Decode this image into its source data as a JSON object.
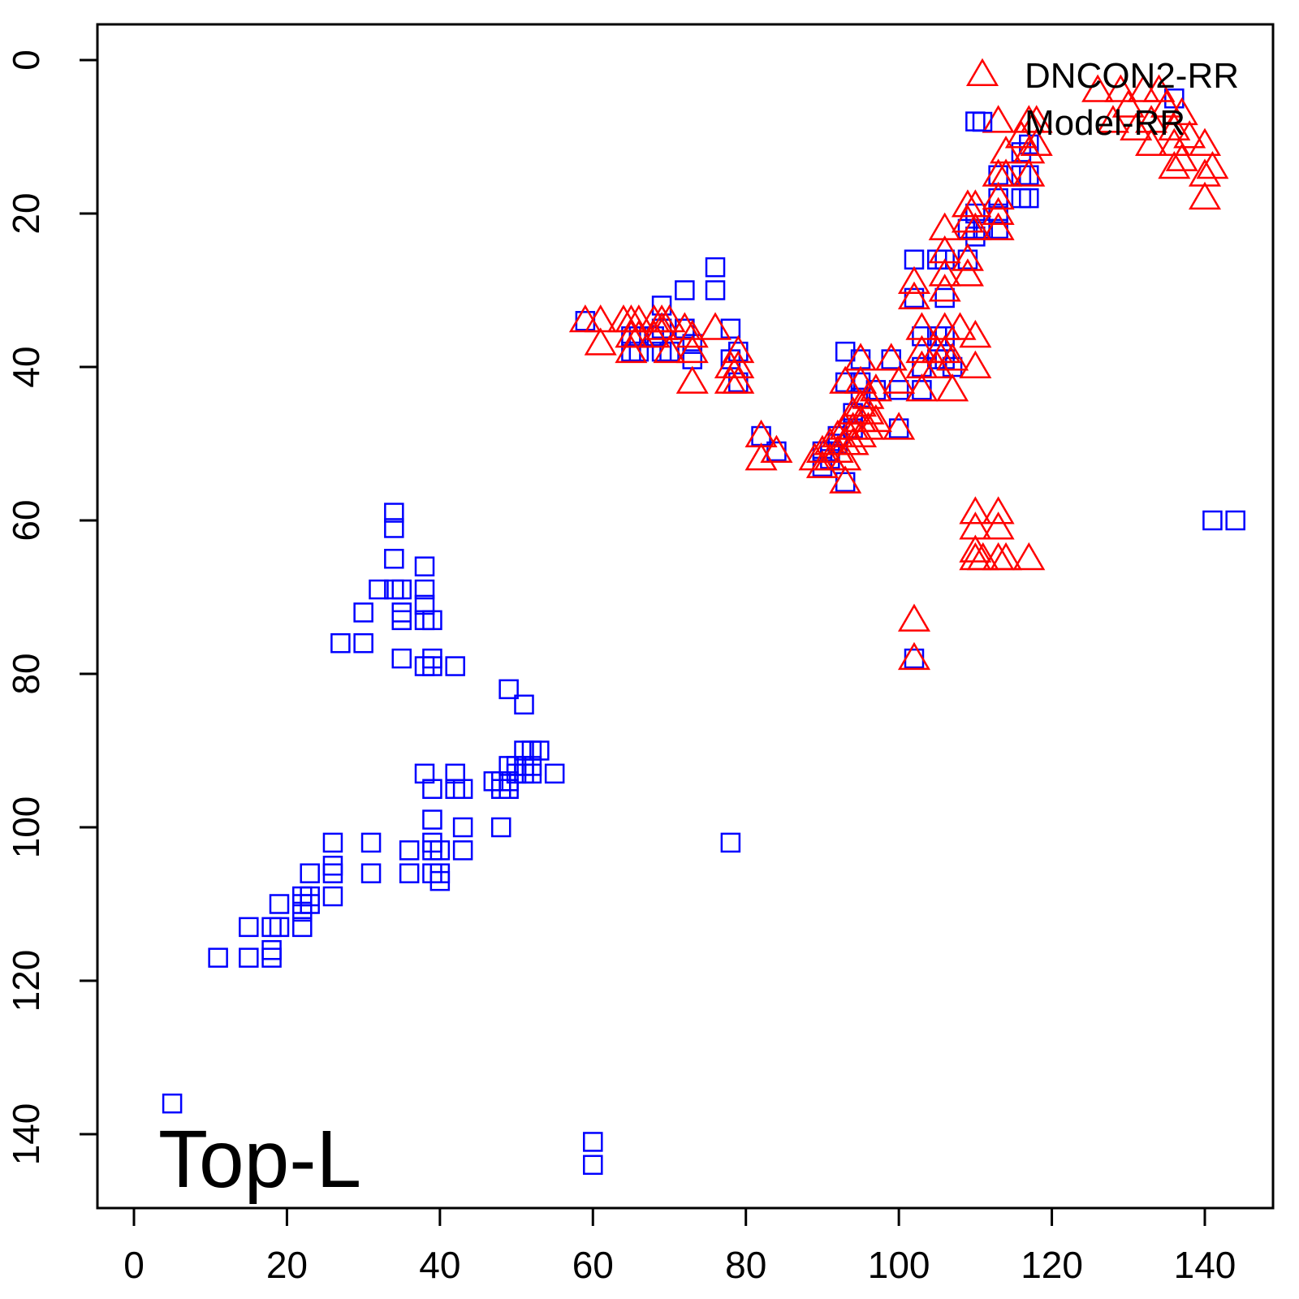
{
  "chart_data": {
    "type": "scatter",
    "panel_label": "Top-L",
    "title": "",
    "xlabel": "",
    "ylabel": "",
    "xlim": [
      -4.5,
      149.5
    ],
    "ylim": [
      -4.5,
      149.5
    ],
    "y_inverted": true,
    "x_ticks": [
      0,
      20,
      40,
      60,
      80,
      100,
      120,
      140
    ],
    "y_ticks": [
      0,
      20,
      40,
      60,
      80,
      100,
      120,
      140
    ],
    "grid": false,
    "legend_position": "top-right",
    "series": [
      {
        "name": "DNCON2-RR",
        "marker": "triangle",
        "color": "#ff0000",
        "points": [
          [
            59,
            34
          ],
          [
            61,
            34
          ],
          [
            61,
            37
          ],
          [
            64,
            34
          ],
          [
            65,
            34
          ],
          [
            65,
            36
          ],
          [
            65,
            38
          ],
          [
            66,
            34
          ],
          [
            66,
            36
          ],
          [
            68,
            34
          ],
          [
            68,
            36
          ],
          [
            69,
            34
          ],
          [
            69,
            35
          ],
          [
            70,
            34
          ],
          [
            70,
            38
          ],
          [
            72,
            35
          ],
          [
            73,
            36
          ],
          [
            73,
            38
          ],
          [
            73,
            42
          ],
          [
            76,
            35
          ],
          [
            78,
            40
          ],
          [
            78,
            42
          ],
          [
            79,
            38
          ],
          [
            79,
            40
          ],
          [
            79,
            42
          ],
          [
            82,
            49
          ],
          [
            82,
            52
          ],
          [
            84,
            51
          ],
          [
            89,
            52
          ],
          [
            90,
            51
          ],
          [
            90,
            53
          ],
          [
            91,
            50
          ],
          [
            91,
            52
          ],
          [
            92,
            49
          ],
          [
            92,
            51
          ],
          [
            93,
            48
          ],
          [
            93,
            50
          ],
          [
            93,
            52
          ],
          [
            93,
            55
          ],
          [
            94,
            46
          ],
          [
            94,
            48
          ],
          [
            94,
            50
          ],
          [
            95,
            45
          ],
          [
            95,
            47
          ],
          [
            95,
            49
          ],
          [
            95,
            39
          ],
          [
            95,
            42
          ],
          [
            96,
            44
          ],
          [
            96,
            46
          ],
          [
            96,
            48
          ],
          [
            97,
            47
          ],
          [
            97,
            43
          ],
          [
            93,
            42
          ],
          [
            99,
            39
          ],
          [
            100,
            42
          ],
          [
            100,
            48
          ],
          [
            102,
            29
          ],
          [
            102,
            31
          ],
          [
            102,
            73
          ],
          [
            102,
            78
          ],
          [
            103,
            35
          ],
          [
            103,
            38
          ],
          [
            103,
            40
          ],
          [
            103,
            43
          ],
          [
            105,
            38
          ],
          [
            105,
            40
          ],
          [
            106,
            22
          ],
          [
            106,
            25
          ],
          [
            106,
            28
          ],
          [
            106,
            30
          ],
          [
            106,
            35
          ],
          [
            106,
            38
          ],
          [
            107,
            39
          ],
          [
            107,
            43
          ],
          [
            108,
            35
          ],
          [
            109,
            19
          ],
          [
            109,
            21
          ],
          [
            109,
            26
          ],
          [
            109,
            28
          ],
          [
            110,
            19
          ],
          [
            110,
            22
          ],
          [
            110,
            36
          ],
          [
            110,
            40
          ],
          [
            110,
            59
          ],
          [
            110,
            61
          ],
          [
            110,
            64
          ],
          [
            110,
            65
          ],
          [
            111,
            65
          ],
          [
            113,
            8
          ],
          [
            113,
            15
          ],
          [
            113,
            18
          ],
          [
            113,
            20
          ],
          [
            113,
            22
          ],
          [
            113,
            59
          ],
          [
            113,
            61
          ],
          [
            113,
            65
          ],
          [
            114,
            12
          ],
          [
            114,
            15
          ],
          [
            114,
            65
          ],
          [
            116,
            10
          ],
          [
            117,
            8
          ],
          [
            117,
            12
          ],
          [
            117,
            15
          ],
          [
            117,
            65
          ],
          [
            118,
            8
          ],
          [
            118,
            11
          ],
          [
            126,
            4
          ],
          [
            128,
            8
          ],
          [
            129,
            4
          ],
          [
            130,
            6
          ],
          [
            132,
            4
          ],
          [
            133,
            8
          ],
          [
            133,
            11
          ],
          [
            134,
            4
          ],
          [
            135,
            6
          ],
          [
            136,
            9
          ],
          [
            136,
            11
          ],
          [
            137,
            7
          ],
          [
            137,
            13
          ],
          [
            138,
            10
          ],
          [
            140,
            11
          ],
          [
            140,
            15
          ],
          [
            140,
            18
          ],
          [
            141,
            14
          ],
          [
            136,
            14
          ],
          [
            131,
            9
          ]
        ]
      },
      {
        "name": "Model-RR",
        "marker": "square",
        "color": "#0000ff",
        "points": [
          [
            5,
            136
          ],
          [
            11,
            117
          ],
          [
            15,
            113
          ],
          [
            15,
            117
          ],
          [
            18,
            113
          ],
          [
            18,
            116
          ],
          [
            18,
            117
          ],
          [
            19,
            110
          ],
          [
            19,
            113
          ],
          [
            22,
            109
          ],
          [
            22,
            110
          ],
          [
            22,
            111
          ],
          [
            22,
            113
          ],
          [
            23,
            106
          ],
          [
            23,
            109
          ],
          [
            23,
            110
          ],
          [
            26,
            102
          ],
          [
            26,
            105
          ],
          [
            26,
            106
          ],
          [
            26,
            109
          ],
          [
            27,
            76
          ],
          [
            30,
            72
          ],
          [
            30,
            76
          ],
          [
            31,
            102
          ],
          [
            31,
            106
          ],
          [
            32,
            69
          ],
          [
            34,
            59
          ],
          [
            34,
            61
          ],
          [
            34,
            65
          ],
          [
            34,
            69
          ],
          [
            35,
            69
          ],
          [
            35,
            72
          ],
          [
            35,
            73
          ],
          [
            35,
            78
          ],
          [
            36,
            103
          ],
          [
            36,
            106
          ],
          [
            38,
            66
          ],
          [
            38,
            69
          ],
          [
            38,
            71
          ],
          [
            38,
            73
          ],
          [
            38,
            79
          ],
          [
            38,
            93
          ],
          [
            39,
            73
          ],
          [
            39,
            78
          ],
          [
            39,
            79
          ],
          [
            39,
            95
          ],
          [
            39,
            99
          ],
          [
            39,
            102
          ],
          [
            39,
            103
          ],
          [
            39,
            106
          ],
          [
            40,
            106
          ],
          [
            40,
            107
          ],
          [
            40,
            103
          ],
          [
            42,
            79
          ],
          [
            42,
            93
          ],
          [
            42,
            95
          ],
          [
            43,
            95
          ],
          [
            43,
            100
          ],
          [
            43,
            103
          ],
          [
            47,
            94
          ],
          [
            48,
            94
          ],
          [
            48,
            95
          ],
          [
            48,
            100
          ],
          [
            49,
            82
          ],
          [
            49,
            92
          ],
          [
            49,
            94
          ],
          [
            49,
            95
          ],
          [
            50,
            92
          ],
          [
            50,
            93
          ],
          [
            51,
            84
          ],
          [
            51,
            90
          ],
          [
            51,
            92
          ],
          [
            51,
            93
          ],
          [
            52,
            90
          ],
          [
            52,
            92
          ],
          [
            52,
            93
          ],
          [
            53,
            90
          ],
          [
            55,
            93
          ],
          [
            59,
            34
          ],
          [
            60,
            141
          ],
          [
            60,
            144
          ],
          [
            65,
            36
          ],
          [
            65,
            38
          ],
          [
            66,
            36
          ],
          [
            66,
            38
          ],
          [
            68,
            36
          ],
          [
            69,
            32
          ],
          [
            69,
            35
          ],
          [
            69,
            38
          ],
          [
            70,
            38
          ],
          [
            72,
            30
          ],
          [
            72,
            35
          ],
          [
            73,
            37
          ],
          [
            73,
            39
          ],
          [
            76,
            27
          ],
          [
            76,
            30
          ],
          [
            78,
            35
          ],
          [
            78,
            39
          ],
          [
            78,
            102
          ],
          [
            79,
            38
          ],
          [
            79,
            42
          ],
          [
            82,
            49
          ],
          [
            84,
            51
          ],
          [
            90,
            51
          ],
          [
            90,
            53
          ],
          [
            91,
            51
          ],
          [
            91,
            52
          ],
          [
            92,
            49
          ],
          [
            92,
            50
          ],
          [
            93,
            38
          ],
          [
            93,
            42
          ],
          [
            93,
            55
          ],
          [
            94,
            46
          ],
          [
            94,
            48
          ],
          [
            95,
            39
          ],
          [
            95,
            42
          ],
          [
            95,
            44
          ],
          [
            97,
            43
          ],
          [
            99,
            39
          ],
          [
            100,
            43
          ],
          [
            100,
            48
          ],
          [
            102,
            26
          ],
          [
            102,
            31
          ],
          [
            102,
            78
          ],
          [
            103,
            36
          ],
          [
            103,
            40
          ],
          [
            103,
            43
          ],
          [
            105,
            26
          ],
          [
            105,
            36
          ],
          [
            105,
            39
          ],
          [
            106,
            26
          ],
          [
            106,
            31
          ],
          [
            106,
            36
          ],
          [
            106,
            39
          ],
          [
            107,
            40
          ],
          [
            109,
            22
          ],
          [
            109,
            26
          ],
          [
            110,
            8
          ],
          [
            110,
            20
          ],
          [
            110,
            23
          ],
          [
            111,
            22
          ],
          [
            113,
            15
          ],
          [
            113,
            18
          ],
          [
            113,
            20
          ],
          [
            113,
            22
          ],
          [
            116,
            12
          ],
          [
            116,
            15
          ],
          [
            116,
            18
          ],
          [
            117,
            15
          ],
          [
            117,
            18
          ],
          [
            117,
            11
          ],
          [
            136,
            5
          ],
          [
            141,
            60
          ],
          [
            144,
            60
          ]
        ]
      }
    ]
  }
}
